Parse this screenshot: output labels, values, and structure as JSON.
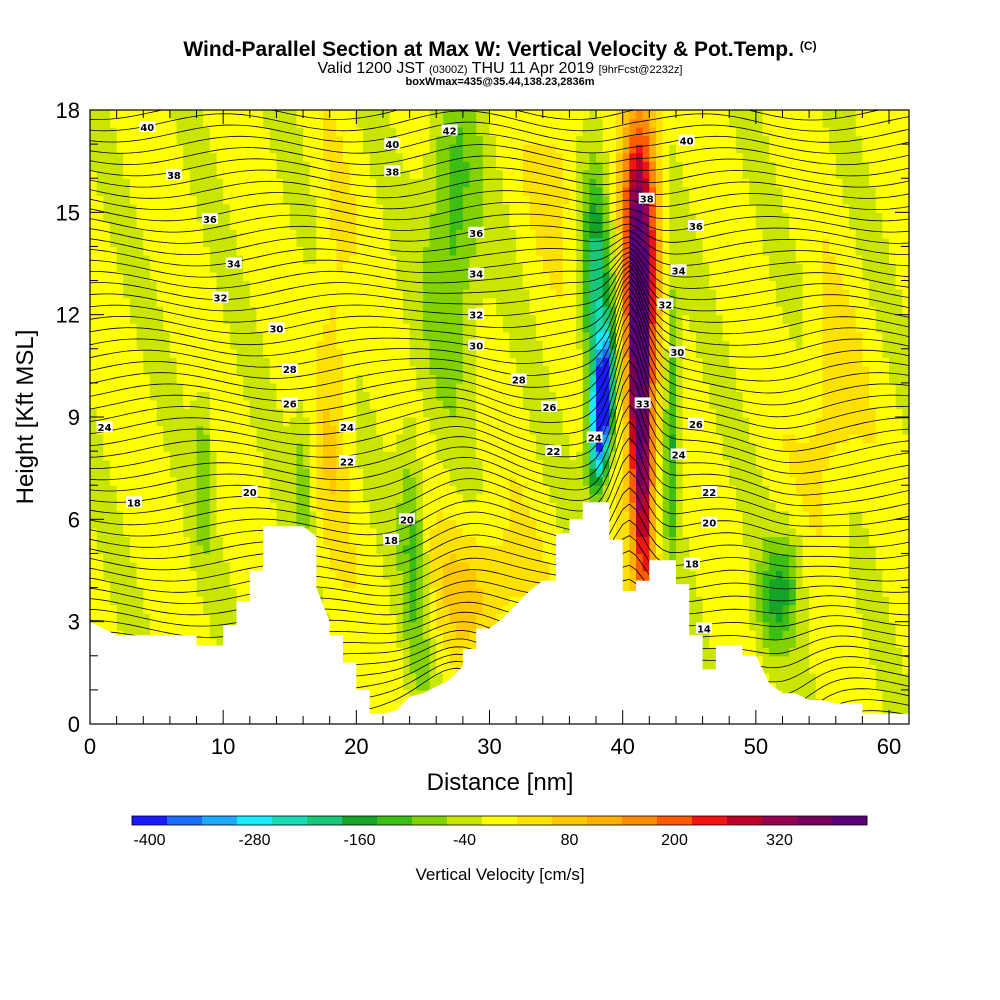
{
  "header": {
    "title": "Wind-Parallel Section at Max W: Vertical Velocity & Pot.Temp.",
    "title_suffix": "(C)",
    "subtitle_pre": "Valid 1200 JST",
    "subtitle_small1": "(0300Z)",
    "subtitle_main": "THU 11 Apr 2019",
    "subtitle_small2": "[9hrFcst@2232z]",
    "subtitle2": "boxWmax=435@35.44,138.23,2836m"
  },
  "chart_data": {
    "type": "heatmap",
    "xlabel": "Distance [nm]",
    "ylabel": "Height [Kft MSL]",
    "xlim": [
      0,
      61.5
    ],
    "ylim": [
      0,
      18
    ],
    "xticks": [
      0,
      10,
      20,
      30,
      40,
      50,
      60
    ],
    "yticks": [
      0,
      3,
      6,
      9,
      12,
      15,
      18
    ],
    "colorbar": {
      "label": "Vertical Velocity [cm/s]",
      "ticks": [
        -400,
        -280,
        -160,
        -40,
        80,
        200,
        320
      ],
      "colors": [
        "#1a1aff",
        "#1e6cff",
        "#1eaaff",
        "#19ebff",
        "#18dcb4",
        "#18c878",
        "#14a528",
        "#3cbe14",
        "#82d200",
        "#c8e600",
        "#ffff00",
        "#ffe100",
        "#ffc800",
        "#ffaf00",
        "#ff8c00",
        "#ff5a00",
        "#f01414",
        "#be0028",
        "#960050",
        "#78005a",
        "#5a0078"
      ]
    },
    "terrain": [
      [
        0,
        3
      ],
      [
        2,
        2.6
      ],
      [
        8,
        2.6
      ],
      [
        8,
        2.3
      ],
      [
        10,
        2.3
      ],
      [
        10,
        2.9
      ],
      [
        11,
        2.9
      ],
      [
        11,
        3.6
      ],
      [
        12,
        3.6
      ],
      [
        12,
        4.5
      ],
      [
        13,
        4.5
      ],
      [
        13,
        5.8
      ],
      [
        16,
        5.8
      ],
      [
        17,
        5.5
      ],
      [
        17,
        4.0
      ],
      [
        18,
        3.0
      ],
      [
        18,
        2.6
      ],
      [
        19,
        2.6
      ],
      [
        19,
        1.8
      ],
      [
        20,
        1.8
      ],
      [
        20,
        1.0
      ],
      [
        21,
        1.0
      ],
      [
        21,
        0.3
      ],
      [
        22,
        0.3
      ],
      [
        23,
        0.4
      ],
      [
        24,
        0.8
      ],
      [
        25,
        0.9
      ],
      [
        26,
        1.1
      ],
      [
        27,
        1.3
      ],
      [
        28,
        1.7
      ],
      [
        28,
        2.2
      ],
      [
        29,
        2.2
      ],
      [
        29,
        2.8
      ],
      [
        30,
        2.8
      ],
      [
        31,
        3.1
      ],
      [
        32,
        3.5
      ],
      [
        33,
        3.9
      ],
      [
        34,
        4.2
      ],
      [
        35,
        4.2
      ],
      [
        35,
        5.6
      ],
      [
        36,
        5.6
      ],
      [
        36,
        6.0
      ],
      [
        37,
        6.0
      ],
      [
        37,
        6.5
      ],
      [
        39,
        6.5
      ],
      [
        39,
        5.4
      ],
      [
        40,
        5.4
      ],
      [
        40,
        3.9
      ],
      [
        41,
        3.9
      ],
      [
        41,
        4.2
      ],
      [
        42,
        4.2
      ],
      [
        42,
        4.8
      ],
      [
        44,
        4.8
      ],
      [
        44,
        4.1
      ],
      [
        45,
        4.1
      ],
      [
        45,
        2.6
      ],
      [
        46,
        2.6
      ],
      [
        46,
        1.6
      ],
      [
        47,
        1.6
      ],
      [
        47,
        2.3
      ],
      [
        49,
        2.3
      ],
      [
        49,
        2.0
      ],
      [
        50,
        2.0
      ],
      [
        51,
        1.2
      ],
      [
        52,
        0.9
      ],
      [
        53,
        0.9
      ],
      [
        54,
        0.7
      ],
      [
        55,
        0.7
      ],
      [
        56,
        0.6
      ],
      [
        58,
        0.6
      ],
      [
        58,
        0.3
      ],
      [
        61.5,
        0.3
      ]
    ],
    "isentrope_labels": [
      {
        "text": "40",
        "x": 4.3,
        "y": 17.5
      },
      {
        "text": "38",
        "x": 6.3,
        "y": 16.1
      },
      {
        "text": "36",
        "x": 9.0,
        "y": 14.8
      },
      {
        "text": "34",
        "x": 10.8,
        "y": 13.5
      },
      {
        "text": "32",
        "x": 9.8,
        "y": 12.5
      },
      {
        "text": "30",
        "x": 14.0,
        "y": 11.6
      },
      {
        "text": "28",
        "x": 15.0,
        "y": 10.4
      },
      {
        "text": "26",
        "x": 15.0,
        "y": 9.4
      },
      {
        "text": "24",
        "x": 1.1,
        "y": 8.7
      },
      {
        "text": "18",
        "x": 3.3,
        "y": 6.5
      },
      {
        "text": "20",
        "x": 12.0,
        "y": 6.8
      },
      {
        "text": "24",
        "x": 19.3,
        "y": 8.7
      },
      {
        "text": "22",
        "x": 19.3,
        "y": 7.7
      },
      {
        "text": "20",
        "x": 23.8,
        "y": 6.0
      },
      {
        "text": "18",
        "x": 22.6,
        "y": 5.4
      },
      {
        "text": "40",
        "x": 22.7,
        "y": 17.0
      },
      {
        "text": "38",
        "x": 22.7,
        "y": 16.2
      },
      {
        "text": "42",
        "x": 27.0,
        "y": 17.4
      },
      {
        "text": "36",
        "x": 29.0,
        "y": 14.4
      },
      {
        "text": "34",
        "x": 29.0,
        "y": 13.2
      },
      {
        "text": "32",
        "x": 29.0,
        "y": 12.0
      },
      {
        "text": "30",
        "x": 29.0,
        "y": 11.1
      },
      {
        "text": "28",
        "x": 32.2,
        "y": 10.1
      },
      {
        "text": "26",
        "x": 34.5,
        "y": 9.3
      },
      {
        "text": "22",
        "x": 34.8,
        "y": 8.0
      },
      {
        "text": "24",
        "x": 37.9,
        "y": 8.4
      },
      {
        "text": "38",
        "x": 41.8,
        "y": 15.4
      },
      {
        "text": "40",
        "x": 44.8,
        "y": 17.1
      },
      {
        "text": "36",
        "x": 45.5,
        "y": 14.6
      },
      {
        "text": "34",
        "x": 44.2,
        "y": 13.3
      },
      {
        "text": "32",
        "x": 43.2,
        "y": 12.3
      },
      {
        "text": "30",
        "x": 44.1,
        "y": 10.9
      },
      {
        "text": "33",
        "x": 41.5,
        "y": 9.4
      },
      {
        "text": "26",
        "x": 45.5,
        "y": 8.8
      },
      {
        "text": "24",
        "x": 44.2,
        "y": 7.9
      },
      {
        "text": "22",
        "x": 46.5,
        "y": 6.8
      },
      {
        "text": "20",
        "x": 46.5,
        "y": 5.9
      },
      {
        "text": "18",
        "x": 45.2,
        "y": 4.7
      },
      {
        "text": "14",
        "x": 46.1,
        "y": 2.8
      }
    ]
  }
}
